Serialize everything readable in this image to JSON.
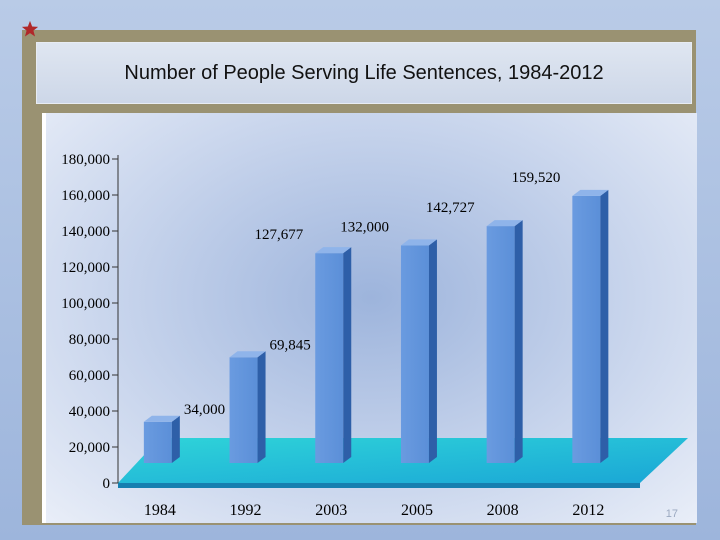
{
  "slide": {
    "title": "Number of People Serving Life Sentences, 1984-2012",
    "page_number": "17"
  },
  "colors": {
    "bar_front": "#5b8fd8",
    "bar_side": "#2e5fa8",
    "bar_top": "#8fb4ea",
    "floor_near": "#1aa6d6",
    "floor_far": "#2fd4d9",
    "frame": "#9a9272"
  },
  "chart_data": {
    "type": "bar",
    "categories": [
      "1984",
      "1992",
      "2003",
      "2005",
      "2008",
      "2012"
    ],
    "values": [
      34000,
      69845,
      127677,
      132000,
      142727,
      159520
    ],
    "data_labels": [
      "34,000",
      "69,845",
      "127,677",
      "132,000",
      "142,727",
      "159,520"
    ],
    "ylim": [
      0,
      180000
    ],
    "yticks": [
      0,
      20000,
      40000,
      60000,
      80000,
      100000,
      120000,
      140000,
      160000,
      180000
    ],
    "ytick_labels": [
      "0",
      "20,000",
      "40,000",
      "60,000",
      "80,000",
      "100,000",
      "120,000",
      "140,000",
      "160,000",
      "180,000"
    ],
    "title": "Number of People Serving Life Sentences, 1984-2012",
    "xlabel": "",
    "ylabel": "",
    "grid": false,
    "style": "3d"
  }
}
